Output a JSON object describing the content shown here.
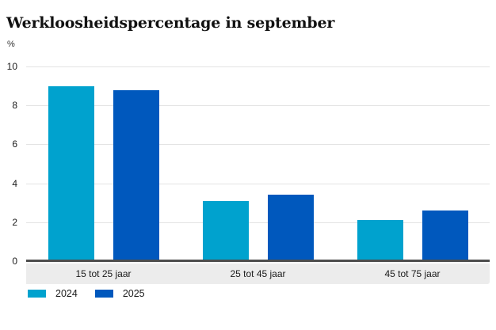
{
  "chart_data": {
    "type": "bar",
    "title": "Werkloosheidspercentage in september",
    "ylabel": "%",
    "xlabel": "",
    "categories": [
      "15 tot 25 jaar",
      "25 tot 45 jaar",
      "45 tot 75 jaar"
    ],
    "series": [
      {
        "name": "2024",
        "color": "#00a2ce",
        "values": [
          9.0,
          3.1,
          2.1
        ]
      },
      {
        "name": "2025",
        "color": "#0058bd",
        "values": [
          8.8,
          3.4,
          2.6
        ]
      }
    ],
    "ylim": [
      0,
      10
    ],
    "yticks": [
      0,
      2,
      4,
      6,
      8,
      10
    ],
    "grid": true,
    "legend_position": "bottom-left"
  },
  "colors": {
    "gridline": "#e3e3e3",
    "zero_axis": "#4d4d4d",
    "category_band": "#ececec",
    "text": "#1a1a1a"
  }
}
